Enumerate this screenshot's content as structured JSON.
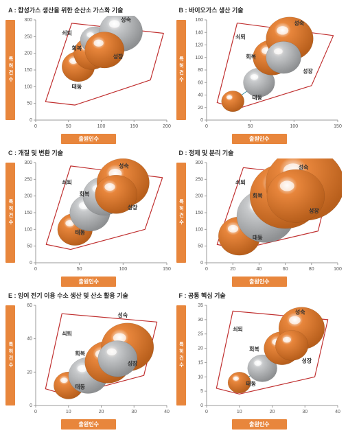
{
  "global": {
    "ylabel": "특허건수",
    "xlabel": "출원인수",
    "label_color": "#ffffff",
    "label_bg": "#e8863c",
    "annotations": [
      "성숙",
      "쇠퇴",
      "회복",
      "성장",
      "태동"
    ],
    "envelope_color": "#c03030",
    "trend_color": "#3a8fa0",
    "bubble_orange": "#e8863c",
    "bubble_orange_dark": "#b85f1c",
    "bubble_silver": "#c7c9cb",
    "bubble_silver_dark": "#8e9092",
    "tick_font": 7,
    "title_font": 9
  },
  "panels": [
    {
      "id": "A",
      "title": "A : 합성가스 생산을 위한 순산소 가스화 기술",
      "xlim": [
        0,
        200
      ],
      "xticks": [
        0,
        50,
        100,
        150,
        200
      ],
      "ylim": [
        0,
        300
      ],
      "yticks": [
        0,
        50,
        100,
        150,
        200,
        250,
        300
      ],
      "envelope": [
        [
          15,
          55
        ],
        [
          55,
          290
        ],
        [
          195,
          260
        ],
        [
          175,
          120
        ],
        [
          60,
          45
        ],
        [
          15,
          55
        ]
      ],
      "trend": [
        [
          65,
          160
        ],
        [
          85,
          200
        ],
        [
          90,
          240
        ],
        [
          130,
          265
        ],
        [
          105,
          210
        ]
      ],
      "bubbles": [
        {
          "x": 65,
          "y": 160,
          "r": 25,
          "c": "orange"
        },
        {
          "x": 85,
          "y": 200,
          "r": 27,
          "c": "orange"
        },
        {
          "x": 90,
          "y": 240,
          "r": 22,
          "c": "silver"
        },
        {
          "x": 130,
          "y": 265,
          "r": 33,
          "c": "silver"
        },
        {
          "x": 105,
          "y": 210,
          "r": 30,
          "c": "orange"
        }
      ],
      "ann": {
        "성숙": [
          130,
          295
        ],
        "쇠퇴": [
          40,
          255
        ],
        "회복": [
          55,
          210
        ],
        "성장": [
          118,
          185
        ],
        "태동": [
          55,
          95
        ]
      }
    },
    {
      "id": "B",
      "title": "B : 바이오가스 생산 기술",
      "xlim": [
        0,
        150
      ],
      "xticks": [
        0,
        50,
        100,
        150
      ],
      "ylim": [
        0,
        160
      ],
      "yticks": [
        0,
        20,
        40,
        60,
        80,
        100,
        120,
        140,
        160
      ],
      "envelope": [
        [
          12,
          28
        ],
        [
          35,
          155
        ],
        [
          145,
          135
        ],
        [
          120,
          55
        ],
        [
          35,
          18
        ],
        [
          12,
          28
        ]
      ],
      "trend": [
        [
          30,
          30
        ],
        [
          60,
          60
        ],
        [
          75,
          100
        ],
        [
          95,
          130
        ],
        [
          88,
          100
        ]
      ],
      "bubbles": [
        {
          "x": 30,
          "y": 30,
          "r": 13,
          "c": "orange"
        },
        {
          "x": 60,
          "y": 60,
          "r": 18,
          "c": "silver"
        },
        {
          "x": 75,
          "y": 100,
          "r": 22,
          "c": "orange"
        },
        {
          "x": 95,
          "y": 130,
          "r": 27,
          "c": "orange"
        },
        {
          "x": 88,
          "y": 100,
          "r": 20,
          "c": "silver"
        }
      ],
      "ann": {
        "성숙": [
          100,
          152
        ],
        "쇠퇴": [
          33,
          130
        ],
        "회복": [
          45,
          98
        ],
        "성장": [
          110,
          75
        ],
        "태동": [
          52,
          33
        ]
      }
    },
    {
      "id": "C",
      "title": "C : 개질 및 변환 기술",
      "xlim": [
        0,
        150
      ],
      "xticks": [
        0,
        50,
        100,
        150
      ],
      "ylim": [
        0,
        300
      ],
      "yticks": [
        0,
        50,
        100,
        150,
        200,
        250,
        300
      ],
      "envelope": [
        [
          12,
          55
        ],
        [
          40,
          290
        ],
        [
          145,
          255
        ],
        [
          125,
          100
        ],
        [
          40,
          40
        ],
        [
          12,
          55
        ]
      ],
      "trend": [
        [
          45,
          100
        ],
        [
          62,
          150
        ],
        [
          78,
          200
        ],
        [
          100,
          240
        ],
        [
          92,
          205
        ]
      ],
      "bubbles": [
        {
          "x": 45,
          "y": 100,
          "r": 20,
          "c": "orange"
        },
        {
          "x": 62,
          "y": 150,
          "r": 23,
          "c": "silver"
        },
        {
          "x": 78,
          "y": 200,
          "r": 24,
          "c": "silver"
        },
        {
          "x": 100,
          "y": 240,
          "r": 30,
          "c": "orange"
        },
        {
          "x": 92,
          "y": 205,
          "r": 24,
          "c": "orange"
        }
      ],
      "ann": {
        "성숙": [
          95,
          285
        ],
        "쇠퇴": [
          30,
          235
        ],
        "회복": [
          50,
          200
        ],
        "성장": [
          105,
          160
        ],
        "태동": [
          45,
          85
        ]
      }
    },
    {
      "id": "D",
      "title": "D : 정제 및 분리 기술",
      "xlim": [
        0,
        100
      ],
      "xticks": [
        0,
        20,
        40,
        60,
        80,
        100
      ],
      "ylim": [
        0,
        300
      ],
      "yticks": [
        0,
        50,
        100,
        150,
        200,
        250,
        300
      ],
      "envelope": [
        [
          8,
          55
        ],
        [
          28,
          285
        ],
        [
          95,
          255
        ],
        [
          85,
          95
        ],
        [
          25,
          40
        ],
        [
          8,
          55
        ]
      ],
      "trend": [
        [
          25,
          80
        ],
        [
          45,
          140
        ],
        [
          60,
          200
        ],
        [
          75,
          235
        ],
        [
          68,
          200
        ]
      ],
      "bubbles": [
        {
          "x": 25,
          "y": 80,
          "r": 16,
          "c": "orange"
        },
        {
          "x": 45,
          "y": 140,
          "r": 22,
          "c": "silver"
        },
        {
          "x": 60,
          "y": 200,
          "r": 27,
          "c": "orange"
        },
        {
          "x": 75,
          "y": 235,
          "r": 30,
          "c": "orange"
        },
        {
          "x": 68,
          "y": 200,
          "r": 22,
          "c": "orange"
        }
      ],
      "ann": {
        "성숙": [
          70,
          280
        ],
        "쇠퇴": [
          22,
          235
        ],
        "회복": [
          35,
          195
        ],
        "성장": [
          78,
          150
        ],
        "태동": [
          35,
          70
        ]
      }
    },
    {
      "id": "E",
      "title": "E : 잉여 전기 이용 수소 생산 및 산소 활용 기술",
      "xlim": [
        0,
        40
      ],
      "xticks": [
        0,
        10,
        20,
        30,
        40
      ],
      "ylim": [
        0,
        60
      ],
      "yticks": [
        0,
        20,
        40,
        60
      ],
      "envelope": [
        [
          3,
          10
        ],
        [
          8,
          55
        ],
        [
          37,
          50
        ],
        [
          33,
          18
        ],
        [
          10,
          6
        ],
        [
          3,
          10
        ]
      ],
      "trend": [
        [
          10,
          12
        ],
        [
          16,
          18
        ],
        [
          22,
          26
        ],
        [
          28,
          35
        ],
        [
          25,
          28
        ]
      ],
      "bubbles": [
        {
          "x": 10,
          "y": 12,
          "r": 4.5,
          "c": "orange"
        },
        {
          "x": 16,
          "y": 18,
          "r": 6,
          "c": "silver"
        },
        {
          "x": 22,
          "y": 26,
          "r": 7,
          "c": "orange"
        },
        {
          "x": 28,
          "y": 35,
          "r": 8,
          "c": "orange"
        },
        {
          "x": 25,
          "y": 28,
          "r": 6,
          "c": "silver"
        }
      ],
      "ann": {
        "성숙": [
          25,
          53
        ],
        "쇠퇴": [
          8,
          42
        ],
        "회복": [
          12,
          30
        ],
        "성장": [
          28,
          24
        ],
        "태동": [
          12,
          10
        ]
      }
    },
    {
      "id": "F",
      "title": "F : 공통 핵심 기술",
      "xlim": [
        0,
        40
      ],
      "xticks": [
        0,
        10,
        20,
        30,
        40
      ],
      "ylim": [
        0,
        35
      ],
      "yticks": [
        0,
        5,
        10,
        15,
        20,
        25,
        30,
        35
      ],
      "envelope": [
        [
          3,
          6
        ],
        [
          8,
          33
        ],
        [
          37,
          30
        ],
        [
          33,
          10
        ],
        [
          10,
          4
        ],
        [
          3,
          6
        ]
      ],
      "trend": [
        [
          10,
          8
        ],
        [
          17,
          13
        ],
        [
          23,
          20
        ],
        [
          29,
          27
        ],
        [
          26,
          21
        ]
      ],
      "bubbles": [
        {
          "x": 10,
          "y": 8,
          "r": 3.5,
          "c": "orange"
        },
        {
          "x": 17,
          "y": 13,
          "r": 4.5,
          "c": "silver"
        },
        {
          "x": 23,
          "y": 20,
          "r": 5.5,
          "c": "orange"
        },
        {
          "x": 29,
          "y": 27,
          "r": 7,
          "c": "orange"
        },
        {
          "x": 26,
          "y": 21,
          "r": 5,
          "c": "orange"
        }
      ],
      "ann": {
        "성숙": [
          27,
          32
        ],
        "쇠퇴": [
          8,
          26
        ],
        "회복": [
          13,
          19
        ],
        "성장": [
          29,
          15
        ],
        "태동": [
          12,
          7
        ]
      }
    }
  ]
}
